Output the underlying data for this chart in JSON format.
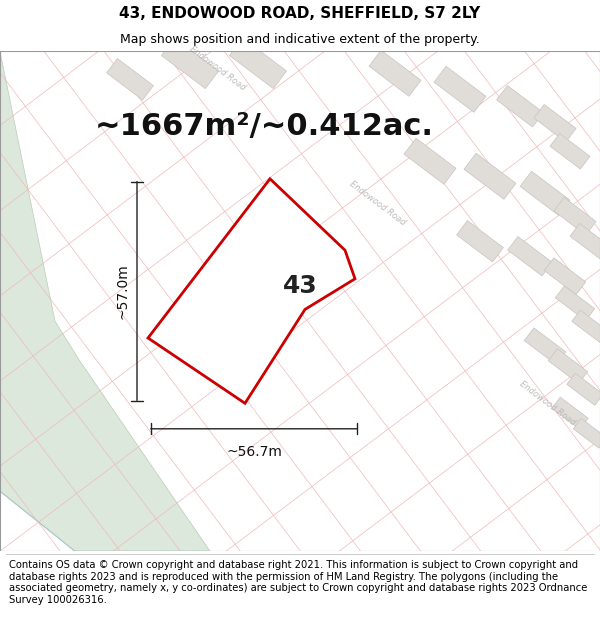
{
  "title": "43, ENDOWOOD ROAD, SHEFFIELD, S7 2LY",
  "subtitle": "Map shows position and indicative extent of the property.",
  "area_text": "~1667m²/~0.412ac.",
  "number_label": "43",
  "dim_width": "~56.7m",
  "dim_height": "~57.0m",
  "footer_text": "Contains OS data © Crown copyright and database right 2021. This information is subject to Crown copyright and database rights 2023 and is reproduced with the permission of HM Land Registry. The polygons (including the associated geometry, namely x, y co-ordinates) are subject to Crown copyright and database rights 2023 Ordnance Survey 100026316.",
  "map_bg": "#f5f3f0",
  "green_area_color": "#dce8dc",
  "plot_outline_color": "#cc0000",
  "road_line_color": "#f0b8b8",
  "road_label_color": "#bbbbbb",
  "building_fill": "#e0ddd8",
  "building_edge": "#c8c5bf",
  "dim_line_color": "#222222",
  "title_fontsize": 11,
  "subtitle_fontsize": 9,
  "area_fontsize": 22,
  "number_fontsize": 18,
  "dim_fontsize": 10,
  "footer_fontsize": 7.2
}
